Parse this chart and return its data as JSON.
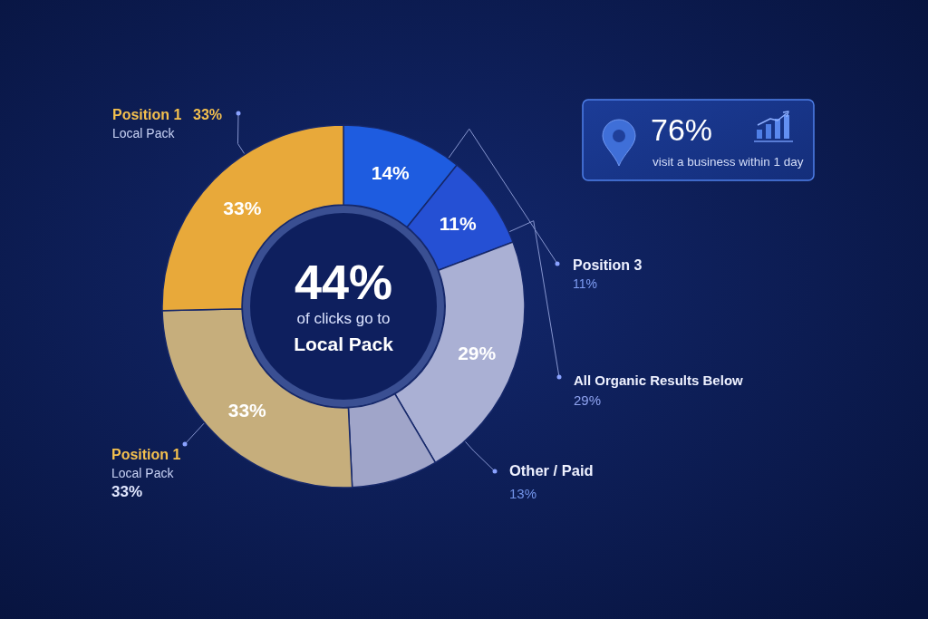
{
  "chart_data": [
    {
      "type": "donut",
      "categories": [
        "Position 3",
        "All Organic Results Below",
        "Other / Paid",
        null,
        "Position 1",
        "Position 1"
      ],
      "values": [
        14,
        11,
        29,
        10,
        33,
        33
      ],
      "value_labels": [
        "14%",
        "11%",
        "29%",
        null,
        "33%",
        "33%"
      ],
      "colors": [
        "#1e5ce0",
        "#2550d4",
        "#aab0d4",
        "#a0a5c9",
        "#c6ae7c",
        "#e8a93a"
      ],
      "annotations": [
        "44%",
        "of clicks go to",
        "Local Pack",
        "33%",
        "Local Pack",
        "11%",
        "29%",
        "13%",
        "Local Pack",
        "33%"
      ]
    },
    {
      "type": "other",
      "title": "76%",
      "subtitle": "visit a business within 1 day"
    }
  ]
}
